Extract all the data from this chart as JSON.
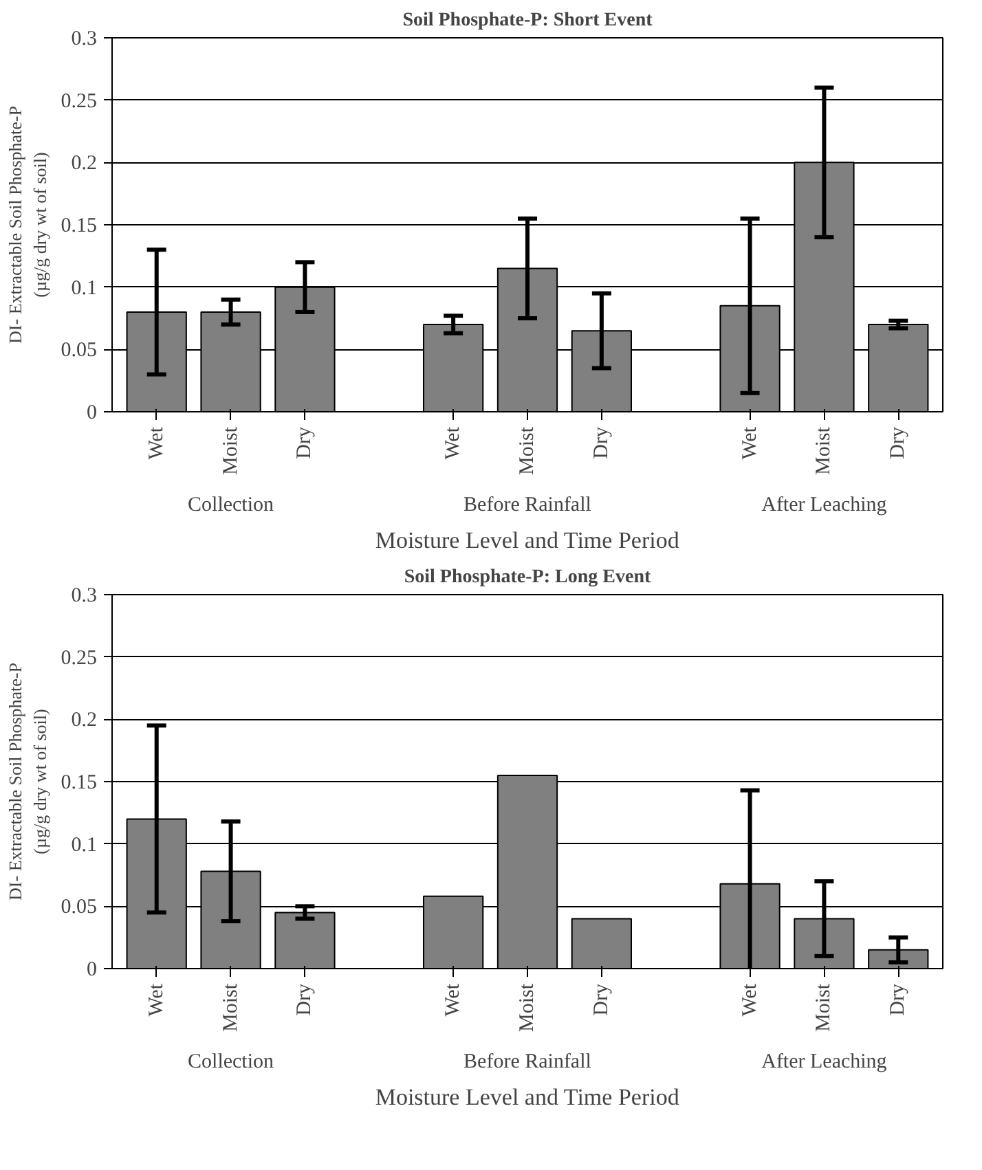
{
  "chart_data": [
    {
      "type": "bar",
      "title": "Soil Phosphate-P: Short Event",
      "xlabel": "Moisture Level and Time Period",
      "ylabel": "DI- Extractable Soil Phosphate-P\n(µg/g dry wt of soil)",
      "categories": [
        "Wet",
        "Moist",
        "Dry",
        null,
        "Wet",
        "Moist",
        "Dry",
        null,
        "Wet",
        "Moist",
        "Dry"
      ],
      "annotations": [
        "Collection",
        "Before Rainfall",
        "After Leaching"
      ],
      "series": [
        {
          "color": "#808080",
          "values": [
            0.08,
            0.08,
            0.1,
            null,
            0.07,
            0.115,
            0.065,
            null,
            0.085,
            0.2,
            0.07
          ],
          "errors": [
            0.05,
            0.01,
            0.02,
            null,
            0.007,
            0.04,
            0.03,
            null,
            0.07,
            0.06,
            0.003
          ]
        }
      ],
      "ylim": [
        0,
        0.3
      ],
      "yticks": [
        0,
        0.05,
        0.1,
        0.15,
        0.2,
        0.25,
        0.3
      ],
      "grid": "y"
    },
    {
      "type": "bar",
      "title": "Soil Phosphate-P: Long Event",
      "xlabel": "Moisture Level and Time Period",
      "ylabel": "DI- Extractable Soil Phosphate-P\n(µg/g dry wt of soil)",
      "categories": [
        "Wet",
        "Moist",
        "Dry",
        null,
        "Wet",
        "Moist",
        "Dry",
        null,
        "Wet",
        "Moist",
        "Dry"
      ],
      "annotations": [
        "Collection",
        "Before Rainfall",
        "After Leaching"
      ],
      "series": [
        {
          "color": "#808080",
          "values": [
            0.12,
            0.078,
            0.045,
            null,
            0.058,
            0.155,
            0.04,
            null,
            0.068,
            0.04,
            0.015
          ],
          "errors": [
            0.075,
            0.04,
            0.005,
            null,
            null,
            null,
            null,
            null,
            0.075,
            0.03,
            0.01
          ]
        }
      ],
      "ylim": [
        0,
        0.3
      ],
      "yticks": [
        0,
        0.05,
        0.1,
        0.15,
        0.2,
        0.25,
        0.3
      ],
      "grid": "y"
    }
  ]
}
